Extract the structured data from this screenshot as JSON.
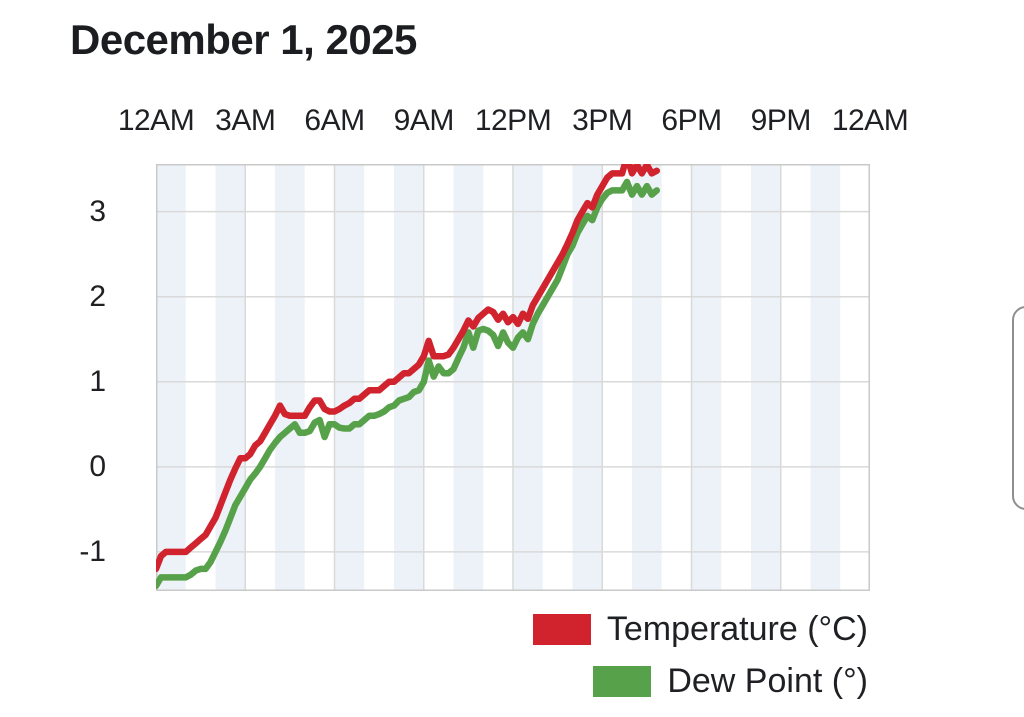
{
  "title": "December 1, 2025",
  "colors": {
    "temperature_line": "#d0232e",
    "dew_point_line": "#58a14b",
    "hour_band": "#edf2f8",
    "gridline": "#d9d9d9",
    "plot_border": "#c9c9c9",
    "text": "#1e2023"
  },
  "legend": {
    "position": "bottom-right"
  },
  "chart_data": {
    "type": "line",
    "title": "December 1, 2025",
    "xlabel": "",
    "ylabel": "",
    "x_axis": {
      "tick_labels": [
        "12AM",
        "3AM",
        "6AM",
        "9AM",
        "12PM",
        "3PM",
        "6PM",
        "9PM",
        "12AM"
      ],
      "tick_hours": [
        0,
        3,
        6,
        9,
        12,
        15,
        18,
        21,
        24
      ],
      "range_hours": [
        0,
        24
      ],
      "labels_position": "top",
      "band_interval_hours": 1
    },
    "y_axis": {
      "tick_labels": [
        "3",
        "2",
        "1",
        "0",
        "-1"
      ],
      "tick_values": [
        3,
        2,
        1,
        0,
        -1
      ],
      "range": [
        -1.46,
        3.56
      ],
      "grid": true
    },
    "start_hour": 0,
    "sample_interval_minutes": 10,
    "data_end_time": "4:50PM",
    "series": [
      {
        "name": "Temperature (°C)",
        "color": "#d0232e",
        "values": [
          -1.2,
          -1.05,
          -1,
          -1,
          -1,
          -1,
          -1,
          -0.95,
          -0.9,
          -0.85,
          -0.8,
          -0.7,
          -0.6,
          -0.45,
          -0.3,
          -0.15,
          -0.02,
          0.1,
          0.1,
          0.15,
          0.25,
          0.3,
          0.4,
          0.5,
          0.6,
          0.72,
          0.62,
          0.6,
          0.6,
          0.6,
          0.6,
          0.7,
          0.78,
          0.78,
          0.68,
          0.65,
          0.65,
          0.68,
          0.72,
          0.75,
          0.8,
          0.8,
          0.85,
          0.9,
          0.9,
          0.9,
          0.95,
          1,
          1,
          1.05,
          1.1,
          1.1,
          1.15,
          1.2,
          1.3,
          1.48,
          1.3,
          1.3,
          1.3,
          1.32,
          1.4,
          1.5,
          1.6,
          1.72,
          1.65,
          1.75,
          1.8,
          1.85,
          1.82,
          1.73,
          1.8,
          1.7,
          1.76,
          1.68,
          1.8,
          1.74,
          1.9,
          2,
          2.1,
          2.2,
          2.3,
          2.4,
          2.5,
          2.62,
          2.75,
          2.9,
          3,
          3.1,
          3.05,
          3.2,
          3.3,
          3.4,
          3.45,
          3.45,
          3.45,
          3.65,
          3.45,
          3.55,
          3.45,
          3.55,
          3.45,
          3.48
        ]
      },
      {
        "name": "Dew Point (°)",
        "color": "#58a14b",
        "values": [
          -1.4,
          -1.3,
          -1.3,
          -1.3,
          -1.3,
          -1.3,
          -1.3,
          -1.27,
          -1.22,
          -1.2,
          -1.2,
          -1.12,
          -1,
          -0.88,
          -0.75,
          -0.6,
          -0.45,
          -0.35,
          -0.25,
          -0.15,
          -0.08,
          0,
          0.1,
          0.2,
          0.28,
          0.35,
          0.4,
          0.45,
          0.5,
          0.4,
          0.4,
          0.42,
          0.52,
          0.55,
          0.35,
          0.5,
          0.5,
          0.46,
          0.45,
          0.45,
          0.5,
          0.5,
          0.55,
          0.6,
          0.6,
          0.62,
          0.65,
          0.7,
          0.72,
          0.78,
          0.8,
          0.82,
          0.88,
          0.9,
          1,
          1.25,
          1.06,
          1.18,
          1.1,
          1.1,
          1.15,
          1.28,
          1.4,
          1.58,
          1.4,
          1.6,
          1.62,
          1.6,
          1.55,
          1.42,
          1.58,
          1.46,
          1.4,
          1.52,
          1.58,
          1.5,
          1.68,
          1.8,
          1.9,
          2,
          2.1,
          2.2,
          2.35,
          2.5,
          2.6,
          2.75,
          2.85,
          2.95,
          2.9,
          3.05,
          3.15,
          3.22,
          3.25,
          3.25,
          3.25,
          3.35,
          3.2,
          3.3,
          3.2,
          3.3,
          3.2,
          3.25
        ]
      }
    ],
    "legend_position": "bottom-right"
  }
}
